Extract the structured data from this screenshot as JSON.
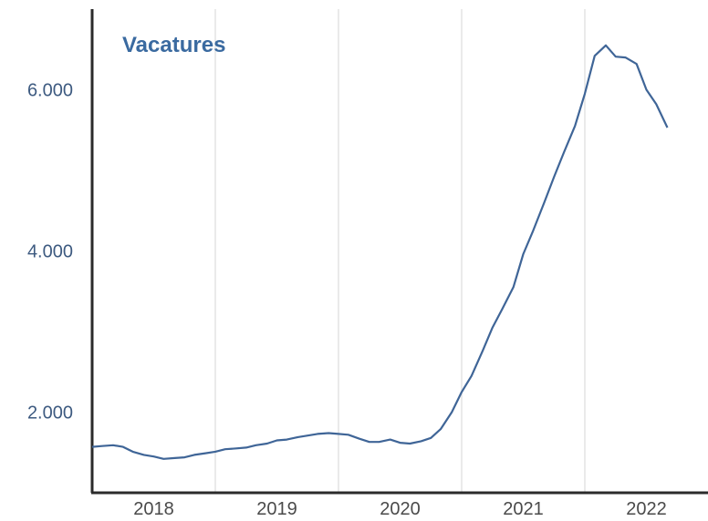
{
  "chart_data": {
    "type": "line",
    "title": "Vacatures",
    "xlabel": "",
    "ylabel": "",
    "x_ticks": [
      "2018",
      "2019",
      "2020",
      "2021",
      "2022"
    ],
    "y_ticks": [
      "2.000",
      "4.000",
      "6.000"
    ],
    "y_tick_values": [
      2000,
      4000,
      6000
    ],
    "xlim": [
      2017.5,
      2022.5
    ],
    "ylim": [
      1000,
      7000
    ],
    "grid": "vertical",
    "series": [
      {
        "color": "#3f6597",
        "x": [
          2017.5,
          2017.58,
          2017.67,
          2017.75,
          2017.83,
          2017.92,
          2018.0,
          2018.08,
          2018.17,
          2018.25,
          2018.33,
          2018.42,
          2018.5,
          2018.58,
          2018.67,
          2018.75,
          2018.83,
          2018.92,
          2019.0,
          2019.08,
          2019.17,
          2019.25,
          2019.33,
          2019.42,
          2019.5,
          2019.58,
          2019.67,
          2019.75,
          2019.83,
          2019.92,
          2020.0,
          2020.08,
          2020.17,
          2020.25,
          2020.33,
          2020.42,
          2020.5,
          2020.58,
          2020.67,
          2020.75,
          2020.83,
          2020.92,
          2021.0,
          2021.08,
          2021.17,
          2021.25,
          2021.33,
          2021.42,
          2021.5,
          2021.58,
          2021.67,
          2021.75,
          2021.83,
          2021.92,
          2022.0,
          2022.08,
          2022.17,
          2022.25,
          2022.33
        ],
        "y": [
          1570,
          1580,
          1590,
          1570,
          1510,
          1470,
          1450,
          1420,
          1430,
          1440,
          1470,
          1490,
          1510,
          1540,
          1550,
          1560,
          1590,
          1610,
          1650,
          1660,
          1690,
          1710,
          1730,
          1740,
          1730,
          1720,
          1670,
          1630,
          1630,
          1660,
          1620,
          1610,
          1640,
          1680,
          1790,
          2000,
          2250,
          2450,
          2760,
          3050,
          3280,
          3550,
          3960,
          4250,
          4600,
          4920,
          5220,
          5550,
          5950,
          6420,
          6550,
          6410,
          6400,
          6320,
          6000,
          5820,
          5530,
          null,
          null
        ]
      }
    ]
  }
}
